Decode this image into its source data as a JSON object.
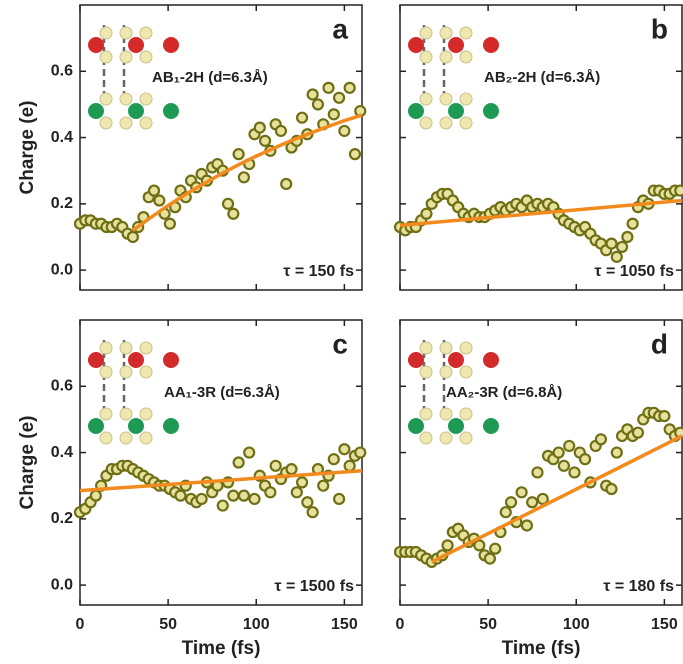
{
  "chart_data": [
    {
      "type": "scatter",
      "label": "a",
      "annotation": "AB₁-2H (d=6.3Å)",
      "tau": "τ = 150 fs",
      "ylabel": "Charge (e)",
      "xlim": [
        0,
        160
      ],
      "ylim": [
        -0.06,
        0.8
      ],
      "xticks": [
        0,
        50,
        100,
        150
      ],
      "yticks": [
        {
          "value": 0,
          "label": "0.0"
        },
        0.2,
        0.4,
        0.6
      ],
      "xtick_labels": false,
      "ytick_labels": true,
      "x": [
        0,
        3,
        6,
        9,
        12,
        15,
        18,
        21,
        24,
        27,
        30,
        33,
        36,
        39,
        42,
        45,
        48,
        51,
        54,
        57,
        60,
        63,
        66,
        69,
        72,
        75,
        78,
        81,
        84,
        87,
        90,
        93,
        96,
        99,
        102,
        105,
        108,
        111,
        114,
        117,
        120,
        123,
        126,
        129,
        132,
        135,
        138,
        141,
        144,
        147,
        150,
        153,
        156,
        159
      ],
      "series": [
        {
          "color": "#6e6e14",
          "values": [
            0.14,
            0.15,
            0.15,
            0.14,
            0.14,
            0.13,
            0.13,
            0.14,
            0.13,
            0.11,
            0.1,
            0.13,
            0.16,
            0.22,
            0.24,
            0.21,
            0.17,
            0.14,
            0.19,
            0.24,
            0.22,
            0.27,
            0.25,
            0.29,
            0.27,
            0.31,
            0.32,
            0.3,
            0.2,
            0.17,
            0.35,
            0.28,
            0.32,
            0.41,
            0.43,
            0.39,
            0.36,
            0.44,
            0.42,
            0.26,
            0.37,
            0.39,
            0.46,
            0.41,
            0.53,
            0.5,
            0.44,
            0.55,
            0.47,
            0.52,
            0.42,
            0.55,
            0.35,
            0.48
          ]
        }
      ],
      "fit": {
        "color": "#f28a1e",
        "x": [
          30,
          40,
          50,
          60,
          70,
          80,
          90,
          100,
          110,
          120,
          130,
          140,
          150,
          160
        ],
        "values": [
          0.12,
          0.158,
          0.195,
          0.229,
          0.26,
          0.29,
          0.318,
          0.344,
          0.368,
          0.391,
          0.412,
          0.432,
          0.451,
          0.468
        ]
      }
    },
    {
      "type": "scatter",
      "label": "b",
      "annotation": "AB₂-2H (d=6.3Å)",
      "tau": "τ = 1050 fs",
      "xlim": [
        0,
        160
      ],
      "ylim": [
        -0.06,
        0.8
      ],
      "xticks": [
        0,
        50,
        100,
        150
      ],
      "yticks": [
        {
          "value": 0,
          "label": "0.0"
        },
        0.2,
        0.4,
        0.6
      ],
      "xtick_labels": false,
      "ytick_labels": false,
      "x": [
        0,
        3,
        6,
        9,
        12,
        15,
        18,
        21,
        24,
        27,
        30,
        33,
        36,
        39,
        42,
        45,
        48,
        51,
        54,
        57,
        60,
        63,
        66,
        69,
        72,
        75,
        78,
        81,
        84,
        87,
        90,
        93,
        96,
        99,
        102,
        105,
        108,
        111,
        114,
        117,
        120,
        123,
        126,
        129,
        132,
        135,
        138,
        141,
        144,
        147,
        150,
        153,
        156,
        159
      ],
      "series": [
        {
          "color": "#6e6e14",
          "values": [
            0.13,
            0.12,
            0.13,
            0.13,
            0.15,
            0.17,
            0.2,
            0.22,
            0.23,
            0.23,
            0.21,
            0.19,
            0.17,
            0.16,
            0.17,
            0.16,
            0.16,
            0.17,
            0.18,
            0.19,
            0.18,
            0.19,
            0.2,
            0.19,
            0.21,
            0.19,
            0.2,
            0.19,
            0.2,
            0.19,
            0.17,
            0.15,
            0.14,
            0.13,
            0.12,
            0.13,
            0.11,
            0.09,
            0.08,
            0.06,
            0.08,
            0.04,
            0.07,
            0.1,
            0.14,
            0.19,
            0.21,
            0.2,
            0.24,
            0.24,
            0.23,
            0.23,
            0.24,
            0.24
          ]
        }
      ],
      "fit": {
        "color": "#f28a1e",
        "x": [
          0,
          160
        ],
        "values": [
          0.135,
          0.21
        ]
      }
    },
    {
      "type": "scatter",
      "label": "c",
      "annotation": "AA₁-3R (d=6.3Å)",
      "tau": "τ = 1500 fs",
      "ylabel": "Charge (e)",
      "xlabel": "Time (fs)",
      "xlim": [
        0,
        160
      ],
      "ylim": [
        -0.06,
        0.8
      ],
      "xticks": [
        0,
        50,
        100,
        150
      ],
      "yticks": [
        {
          "value": 0,
          "label": "0.0"
        },
        0.2,
        0.4,
        0.6
      ],
      "xtick_labels": true,
      "ytick_labels": true,
      "x": [
        0,
        3,
        6,
        9,
        12,
        15,
        18,
        21,
        24,
        27,
        30,
        33,
        36,
        39,
        42,
        45,
        48,
        51,
        54,
        57,
        60,
        63,
        66,
        69,
        72,
        75,
        78,
        81,
        84,
        87,
        90,
        93,
        96,
        99,
        102,
        105,
        108,
        111,
        114,
        117,
        120,
        123,
        126,
        129,
        132,
        135,
        138,
        141,
        144,
        147,
        150,
        153,
        156,
        159
      ],
      "series": [
        {
          "color": "#6e6e14",
          "values": [
            0.22,
            0.23,
            0.25,
            0.27,
            0.3,
            0.33,
            0.35,
            0.35,
            0.36,
            0.36,
            0.35,
            0.34,
            0.33,
            0.32,
            0.31,
            0.3,
            0.3,
            0.29,
            0.28,
            0.27,
            0.3,
            0.26,
            0.25,
            0.26,
            0.31,
            0.28,
            0.3,
            0.24,
            0.31,
            0.27,
            0.37,
            0.27,
            0.4,
            0.26,
            0.33,
            0.3,
            0.28,
            0.36,
            0.32,
            0.34,
            0.35,
            0.28,
            0.31,
            0.25,
            0.22,
            0.35,
            0.3,
            0.33,
            0.38,
            0.26,
            0.41,
            0.36,
            0.39,
            0.4
          ]
        }
      ],
      "fit": {
        "color": "#f28a1e",
        "x": [
          0,
          160
        ],
        "values": [
          0.285,
          0.345
        ]
      }
    },
    {
      "type": "scatter",
      "label": "d",
      "annotation": "AA₂-3R (d=6.8Å)",
      "tau": "τ = 180 fs",
      "xlabel": "Time (fs)",
      "xlim": [
        0,
        160
      ],
      "ylim": [
        -0.06,
        0.8
      ],
      "xticks": [
        0,
        50,
        100,
        150
      ],
      "yticks": [
        {
          "value": 0,
          "label": "0.0"
        },
        0.2,
        0.4,
        0.6
      ],
      "xtick_labels": true,
      "ytick_labels": false,
      "x": [
        0,
        3,
        6,
        9,
        12,
        15,
        18,
        21,
        24,
        27,
        30,
        33,
        36,
        39,
        42,
        45,
        48,
        51,
        54,
        57,
        60,
        63,
        66,
        69,
        72,
        75,
        78,
        81,
        84,
        87,
        90,
        93,
        96,
        99,
        102,
        105,
        108,
        111,
        114,
        117,
        120,
        123,
        126,
        129,
        132,
        135,
        138,
        141,
        144,
        147,
        150,
        153,
        156,
        159
      ],
      "series": [
        {
          "color": "#6e6e14",
          "values": [
            0.1,
            0.1,
            0.1,
            0.1,
            0.09,
            0.08,
            0.07,
            0.08,
            0.09,
            0.12,
            0.16,
            0.17,
            0.15,
            0.13,
            0.14,
            0.12,
            0.09,
            0.08,
            0.11,
            0.16,
            0.22,
            0.25,
            0.19,
            0.28,
            0.18,
            0.25,
            0.34,
            0.26,
            0.39,
            0.38,
            0.4,
            0.36,
            0.42,
            0.34,
            0.4,
            0.38,
            0.31,
            0.42,
            0.44,
            0.3,
            0.29,
            0.4,
            0.45,
            0.47,
            0.45,
            0.46,
            0.5,
            0.52,
            0.52,
            0.51,
            0.51,
            0.47,
            0.45,
            0.46
          ]
        }
      ],
      "fit": {
        "color": "#f28a1e",
        "x": [
          18,
          160
        ],
        "values": [
          0.07,
          0.45
        ]
      }
    }
  ]
}
